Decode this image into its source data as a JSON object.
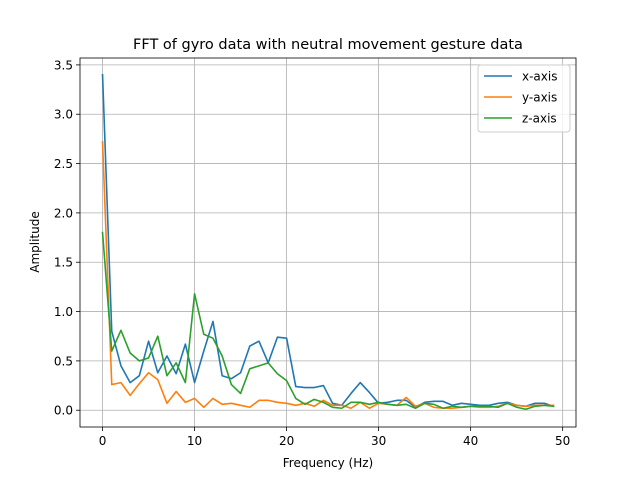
{
  "chart_data": {
    "type": "line",
    "title": "FFT of gyro data with neutral movement gesture data",
    "xlabel": "Frequency (Hz)",
    "ylabel": "Amplitude",
    "xlim": [
      -2.45,
      51.45
    ],
    "ylim": [
      -0.17,
      3.57
    ],
    "x_ticks": [
      0,
      10,
      20,
      30,
      40,
      50
    ],
    "y_ticks": [
      0.0,
      0.5,
      1.0,
      1.5,
      2.0,
      2.5,
      3.0,
      3.5
    ],
    "x_tick_labels": [
      "0",
      "10",
      "20",
      "30",
      "40",
      "50"
    ],
    "y_tick_labels": [
      "0.0",
      "0.5",
      "1.0",
      "1.5",
      "2.0",
      "2.5",
      "3.0",
      "3.5"
    ],
    "grid": true,
    "legend_position": "top-right",
    "x": [
      0,
      1,
      2,
      3,
      4,
      5,
      6,
      7,
      8,
      9,
      10,
      11,
      12,
      13,
      14,
      15,
      16,
      17,
      18,
      19,
      20,
      21,
      22,
      23,
      24,
      25,
      26,
      27,
      28,
      29,
      30,
      31,
      32,
      33,
      34,
      35,
      36,
      37,
      38,
      39,
      40,
      41,
      42,
      43,
      44,
      45,
      46,
      47,
      48,
      49
    ],
    "series": [
      {
        "name": "x-axis",
        "color": "#1f77b4",
        "values": [
          3.4,
          0.8,
          0.45,
          0.28,
          0.35,
          0.7,
          0.38,
          0.55,
          0.37,
          0.67,
          0.28,
          0.6,
          0.9,
          0.35,
          0.32,
          0.38,
          0.65,
          0.7,
          0.48,
          0.74,
          0.73,
          0.24,
          0.23,
          0.23,
          0.25,
          0.07,
          0.05,
          0.17,
          0.28,
          0.18,
          0.07,
          0.08,
          0.1,
          0.1,
          0.03,
          0.08,
          0.09,
          0.09,
          0.05,
          0.07,
          0.06,
          0.05,
          0.05,
          0.07,
          0.08,
          0.05,
          0.04,
          0.07,
          0.07,
          0.04
        ]
      },
      {
        "name": "y-axis",
        "color": "#ff7f0e",
        "values": [
          2.72,
          0.26,
          0.28,
          0.15,
          0.27,
          0.38,
          0.31,
          0.07,
          0.19,
          0.08,
          0.12,
          0.03,
          0.12,
          0.06,
          0.07,
          0.05,
          0.03,
          0.1,
          0.1,
          0.08,
          0.07,
          0.05,
          0.07,
          0.04,
          0.1,
          0.05,
          0.05,
          0.02,
          0.08,
          0.02,
          0.07,
          0.06,
          0.05,
          0.13,
          0.04,
          0.07,
          0.03,
          0.02,
          0.02,
          0.03,
          0.04,
          0.03,
          0.03,
          0.04,
          0.07,
          0.05,
          0.04,
          0.05,
          0.05,
          0.05
        ]
      },
      {
        "name": "z-axis",
        "color": "#2ca02c",
        "values": [
          1.8,
          0.6,
          0.81,
          0.58,
          0.5,
          0.53,
          0.75,
          0.35,
          0.48,
          0.28,
          1.18,
          0.77,
          0.73,
          0.55,
          0.26,
          0.17,
          0.42,
          0.45,
          0.48,
          0.37,
          0.3,
          0.12,
          0.06,
          0.11,
          0.08,
          0.03,
          0.02,
          0.08,
          0.08,
          0.06,
          0.08,
          0.06,
          0.05,
          0.06,
          0.02,
          0.07,
          0.06,
          0.02,
          0.04,
          0.03,
          0.04,
          0.04,
          0.04,
          0.03,
          0.07,
          0.03,
          0.01,
          0.04,
          0.05,
          0.04
        ]
      }
    ]
  }
}
